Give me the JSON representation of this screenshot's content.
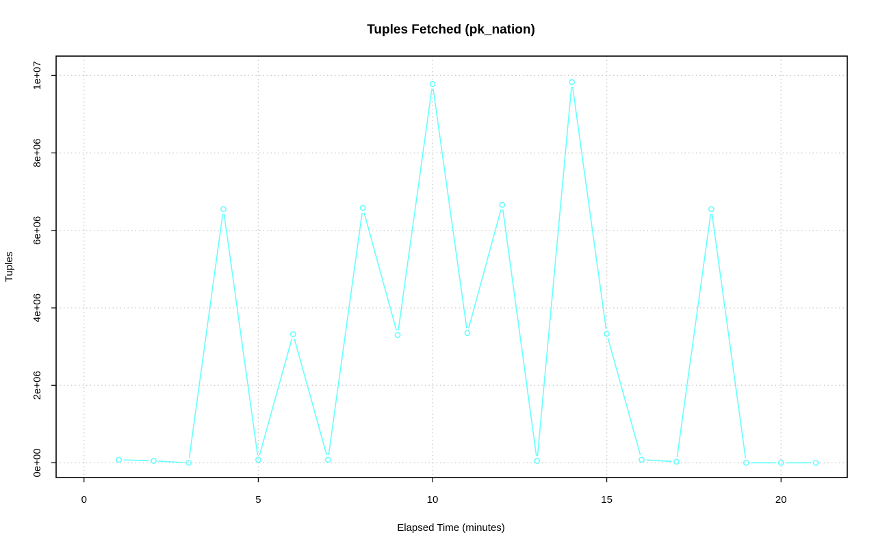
{
  "chart_data": {
    "type": "line",
    "title": "Tuples Fetched (pk_nation)",
    "xlabel": "Elapsed Time (minutes)",
    "ylabel": "Tuples",
    "xlim": [
      -0.8,
      21.9
    ],
    "ylim": [
      -380000,
      10500000
    ],
    "grid": true,
    "x_ticks": [
      0,
      5,
      10,
      15,
      20
    ],
    "x_tick_labels": [
      "0",
      "5",
      "10",
      "15",
      "20"
    ],
    "y_ticks": [
      0,
      2000000,
      4000000,
      6000000,
      8000000,
      10000000
    ],
    "y_tick_labels": [
      "0e+00",
      "2e+06",
      "4e+06",
      "6e+06",
      "8e+06",
      "1e+07"
    ],
    "series": [
      {
        "color": "#66ffff",
        "marker": "open-circle",
        "x": [
          1,
          2,
          3,
          4,
          5,
          6,
          7,
          8,
          9,
          10,
          11,
          12,
          13,
          14,
          15,
          16,
          17,
          18,
          19,
          20,
          21
        ],
        "values": [
          80000,
          50000,
          0,
          6550000,
          80000,
          3320000,
          80000,
          6580000,
          3300000,
          9780000,
          3350000,
          6660000,
          50000,
          9830000,
          3330000,
          80000,
          30000,
          6550000,
          0,
          0,
          0
        ]
      }
    ]
  }
}
